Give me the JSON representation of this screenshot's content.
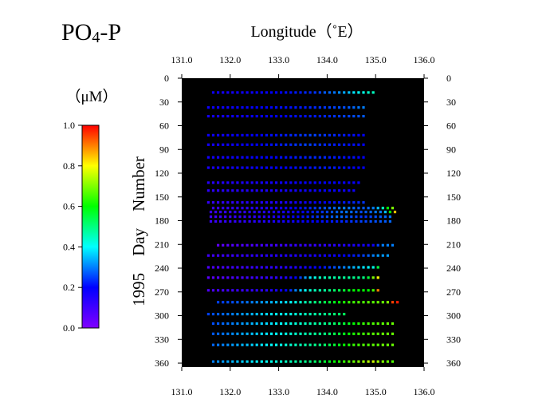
{
  "title_main": "PO",
  "title_sub": "4",
  "title_tail": "-P",
  "x_axis_title": "Longitude（˚E）",
  "y_axis_title": "1995　Day　Number",
  "colorbar": {
    "unit_label": "（μM）",
    "ticks": [
      "1.0",
      "0.8",
      "0.6",
      "0.4",
      "0.2",
      "0.0"
    ],
    "min": 0,
    "max": 1
  },
  "chart_data": {
    "type": "heatmap",
    "xlabel": "Longitude（˚E）",
    "ylabel": "1995　Day　Number",
    "xlim": [
      131,
      136
    ],
    "ylim": [
      0,
      365
    ],
    "xticks": [
      "131.0",
      "132.0",
      "133.0",
      "134.0",
      "135.0",
      "136.0"
    ],
    "yticks": [
      "0",
      "30",
      "60",
      "90",
      "120",
      "150",
      "180",
      "210",
      "240",
      "270",
      "300",
      "330",
      "360"
    ],
    "value_unit": "μM",
    "value_range": [
      0,
      1
    ],
    "rows": [
      {
        "day": 18,
        "lon_start": 131.65,
        "lon_end": 135.0,
        "step": 0.1,
        "values": [
          0.18,
          0.18,
          0.17,
          0.17,
          0.17,
          0.18,
          0.18,
          0.18,
          0.18,
          0.19,
          0.19,
          0.19,
          0.2,
          0.2,
          0.2,
          0.21,
          0.21,
          0.22,
          0.22,
          0.23,
          0.23,
          0.24,
          0.25,
          0.27,
          0.28,
          0.29,
          0.31,
          0.33,
          0.35,
          0.38,
          0.4,
          0.42,
          0.44,
          0.45
        ]
      },
      {
        "day": 37,
        "lon_start": 131.55,
        "lon_end": 134.75,
        "step": 0.1,
        "values": [
          0.18,
          0.18,
          0.18,
          0.18,
          0.18,
          0.18,
          0.19,
          0.19,
          0.19,
          0.19,
          0.2,
          0.2,
          0.2,
          0.2,
          0.21,
          0.21,
          0.21,
          0.21,
          0.22,
          0.22,
          0.22,
          0.23,
          0.23,
          0.24,
          0.24,
          0.25,
          0.25,
          0.26,
          0.26,
          0.27,
          0.28,
          0.29,
          0.3
        ]
      },
      {
        "day": 48,
        "lon_start": 131.55,
        "lon_end": 134.75,
        "step": 0.1,
        "values": [
          0.17,
          0.17,
          0.17,
          0.17,
          0.18,
          0.18,
          0.18,
          0.18,
          0.18,
          0.19,
          0.19,
          0.19,
          0.19,
          0.2,
          0.2,
          0.2,
          0.2,
          0.21,
          0.21,
          0.21,
          0.21,
          0.22,
          0.22,
          0.22,
          0.23,
          0.23,
          0.24,
          0.24,
          0.25,
          0.25,
          0.26,
          0.26,
          0.27
        ]
      },
      {
        "day": 72,
        "lon_start": 131.55,
        "lon_end": 134.75,
        "step": 0.1,
        "values": [
          0.18,
          0.18,
          0.18,
          0.18,
          0.18,
          0.19,
          0.19,
          0.19,
          0.19,
          0.2,
          0.2,
          0.2,
          0.21,
          0.21,
          0.21,
          0.22,
          0.22,
          0.23,
          0.23,
          0.24,
          0.24,
          0.25,
          0.25,
          0.24,
          0.24,
          0.23,
          0.23,
          0.22,
          0.22,
          0.21,
          0.21,
          0.2,
          0.2
        ]
      },
      {
        "day": 84,
        "lon_start": 131.55,
        "lon_end": 134.75,
        "step": 0.1,
        "values": [
          0.17,
          0.17,
          0.17,
          0.18,
          0.18,
          0.18,
          0.19,
          0.19,
          0.19,
          0.2,
          0.2,
          0.2,
          0.21,
          0.21,
          0.22,
          0.22,
          0.23,
          0.23,
          0.24,
          0.24,
          0.25,
          0.25,
          0.24,
          0.24,
          0.23,
          0.23,
          0.22,
          0.22,
          0.22,
          0.21,
          0.21,
          0.21,
          0.2
        ]
      },
      {
        "day": 100,
        "lon_start": 131.55,
        "lon_end": 134.75,
        "step": 0.1,
        "values": [
          0.17,
          0.17,
          0.17,
          0.17,
          0.18,
          0.18,
          0.18,
          0.18,
          0.19,
          0.19,
          0.19,
          0.2,
          0.2,
          0.2,
          0.2,
          0.21,
          0.21,
          0.21,
          0.22,
          0.22,
          0.22,
          0.23,
          0.23,
          0.23,
          0.23,
          0.22,
          0.22,
          0.22,
          0.21,
          0.21,
          0.21,
          0.2,
          0.2
        ]
      },
      {
        "day": 113,
        "lon_start": 131.55,
        "lon_end": 134.75,
        "step": 0.1,
        "values": [
          0.16,
          0.16,
          0.17,
          0.17,
          0.17,
          0.17,
          0.18,
          0.18,
          0.18,
          0.18,
          0.19,
          0.19,
          0.19,
          0.19,
          0.2,
          0.2,
          0.2,
          0.2,
          0.21,
          0.21,
          0.21,
          0.21,
          0.22,
          0.22,
          0.22,
          0.22,
          0.22,
          0.21,
          0.21,
          0.21,
          0.2,
          0.2,
          0.2
        ]
      },
      {
        "day": 132,
        "lon_start": 131.55,
        "lon_end": 134.65,
        "step": 0.1,
        "values": [
          0.14,
          0.14,
          0.14,
          0.15,
          0.15,
          0.15,
          0.15,
          0.16,
          0.16,
          0.16,
          0.16,
          0.17,
          0.17,
          0.17,
          0.17,
          0.18,
          0.18,
          0.18,
          0.18,
          0.19,
          0.19,
          0.19,
          0.19,
          0.2,
          0.2,
          0.2,
          0.2,
          0.2,
          0.19,
          0.19,
          0.19,
          0.19
        ]
      },
      {
        "day": 142,
        "lon_start": 131.55,
        "lon_end": 134.55,
        "step": 0.1,
        "values": [
          0.13,
          0.13,
          0.13,
          0.14,
          0.14,
          0.14,
          0.14,
          0.15,
          0.15,
          0.15,
          0.15,
          0.16,
          0.16,
          0.16,
          0.16,
          0.17,
          0.17,
          0.17,
          0.17,
          0.18,
          0.18,
          0.18,
          0.18,
          0.19,
          0.19,
          0.19,
          0.19,
          0.18,
          0.18,
          0.18,
          0.18
        ]
      },
      {
        "day": 157,
        "lon_start": 131.55,
        "lon_end": 134.75,
        "step": 0.1,
        "values": [
          0.12,
          0.12,
          0.12,
          0.13,
          0.13,
          0.13,
          0.13,
          0.14,
          0.14,
          0.14,
          0.14,
          0.15,
          0.15,
          0.15,
          0.15,
          0.16,
          0.16,
          0.16,
          0.17,
          0.17,
          0.18,
          0.18,
          0.19,
          0.19,
          0.2,
          0.2,
          0.21,
          0.21,
          0.22,
          0.22,
          0.23,
          0.23,
          0.24
        ]
      },
      {
        "day": 164,
        "lon_start": 131.65,
        "lon_end": 135.35,
        "step": 0.1,
        "values": [
          0.11,
          0.11,
          0.12,
          0.12,
          0.12,
          0.13,
          0.13,
          0.13,
          0.14,
          0.14,
          0.15,
          0.15,
          0.16,
          0.16,
          0.17,
          0.18,
          0.19,
          0.2,
          0.21,
          0.22,
          0.23,
          0.24,
          0.25,
          0.26,
          0.27,
          0.28,
          0.29,
          0.3,
          0.29,
          0.28,
          0.27,
          0.27,
          0.28,
          0.3,
          0.35,
          0.45,
          0.6,
          0.7
        ]
      },
      {
        "day": 169,
        "lon_start": 131.6,
        "lon_end": 135.4,
        "step": 0.1,
        "values": [
          0.11,
          0.11,
          0.12,
          0.12,
          0.12,
          0.13,
          0.13,
          0.13,
          0.14,
          0.14,
          0.14,
          0.15,
          0.15,
          0.16,
          0.16,
          0.17,
          0.17,
          0.18,
          0.19,
          0.2,
          0.21,
          0.22,
          0.23,
          0.24,
          0.25,
          0.26,
          0.27,
          0.28,
          0.29,
          0.28,
          0.27,
          0.26,
          0.27,
          0.28,
          0.29,
          0.3,
          0.35,
          0.6,
          0.85
        ]
      },
      {
        "day": 175,
        "lon_start": 131.6,
        "lon_end": 135.3,
        "step": 0.1,
        "values": [
          0.1,
          0.1,
          0.11,
          0.11,
          0.11,
          0.12,
          0.12,
          0.12,
          0.13,
          0.13,
          0.14,
          0.14,
          0.15,
          0.15,
          0.16,
          0.17,
          0.18,
          0.19,
          0.2,
          0.21,
          0.22,
          0.23,
          0.24,
          0.25,
          0.26,
          0.27,
          0.28,
          0.28,
          0.27,
          0.26,
          0.25,
          0.24,
          0.24,
          0.25,
          0.26,
          0.27,
          0.28,
          0.29
        ]
      },
      {
        "day": 181,
        "lon_start": 131.6,
        "lon_end": 135.3,
        "step": 0.1,
        "values": [
          0.11,
          0.11,
          0.11,
          0.12,
          0.12,
          0.12,
          0.13,
          0.13,
          0.13,
          0.14,
          0.14,
          0.15,
          0.15,
          0.16,
          0.16,
          0.17,
          0.17,
          0.18,
          0.18,
          0.19,
          0.19,
          0.2,
          0.2,
          0.21,
          0.21,
          0.22,
          0.22,
          0.23,
          0.23,
          0.24,
          0.24,
          0.25,
          0.25,
          0.26,
          0.26,
          0.27,
          0.27,
          0.28
        ]
      },
      {
        "day": 211,
        "lon_start": 131.75,
        "lon_end": 135.35,
        "step": 0.1,
        "values": [
          0.05,
          0.06,
          0.06,
          0.07,
          0.07,
          0.08,
          0.08,
          0.08,
          0.09,
          0.09,
          0.1,
          0.1,
          0.1,
          0.11,
          0.11,
          0.12,
          0.12,
          0.12,
          0.12,
          0.12,
          0.12,
          0.13,
          0.13,
          0.13,
          0.14,
          0.14,
          0.15,
          0.15,
          0.16,
          0.16,
          0.17,
          0.17,
          0.18,
          0.25,
          0.3,
          0.3,
          0.3
        ]
      },
      {
        "day": 224,
        "lon_start": 131.55,
        "lon_end": 135.25,
        "step": 0.1,
        "values": [
          0.1,
          0.1,
          0.1,
          0.11,
          0.11,
          0.11,
          0.12,
          0.12,
          0.12,
          0.13,
          0.13,
          0.13,
          0.14,
          0.14,
          0.14,
          0.15,
          0.15,
          0.15,
          0.15,
          0.15,
          0.16,
          0.16,
          0.16,
          0.17,
          0.17,
          0.18,
          0.18,
          0.19,
          0.2,
          0.21,
          0.22,
          0.23,
          0.25,
          0.27,
          0.3,
          0.32,
          0.32,
          0.32
        ]
      },
      {
        "day": 239,
        "lon_start": 131.55,
        "lon_end": 135.05,
        "step": 0.1,
        "values": [
          0.08,
          0.08,
          0.08,
          0.09,
          0.09,
          0.1,
          0.1,
          0.1,
          0.11,
          0.11,
          0.12,
          0.12,
          0.13,
          0.13,
          0.13,
          0.14,
          0.14,
          0.15,
          0.15,
          0.16,
          0.17,
          0.18,
          0.19,
          0.2,
          0.22,
          0.24,
          0.26,
          0.28,
          0.3,
          0.32,
          0.34,
          0.36,
          0.38,
          0.4,
          0.42,
          0.55
        ]
      },
      {
        "day": 252,
        "lon_start": 131.55,
        "lon_end": 135.05,
        "step": 0.1,
        "values": [
          0.06,
          0.06,
          0.07,
          0.07,
          0.08,
          0.08,
          0.09,
          0.09,
          0.1,
          0.1,
          0.11,
          0.11,
          0.12,
          0.12,
          0.13,
          0.14,
          0.15,
          0.17,
          0.2,
          0.25,
          0.32,
          0.38,
          0.42,
          0.45,
          0.46,
          0.47,
          0.47,
          0.48,
          0.48,
          0.48,
          0.49,
          0.49,
          0.5,
          0.55,
          0.7,
          0.8
        ]
      },
      {
        "day": 268,
        "lon_start": 131.55,
        "lon_end": 135.05,
        "step": 0.1,
        "values": [
          0.08,
          0.08,
          0.09,
          0.09,
          0.1,
          0.1,
          0.11,
          0.11,
          0.12,
          0.12,
          0.13,
          0.13,
          0.14,
          0.15,
          0.16,
          0.18,
          0.2,
          0.24,
          0.3,
          0.36,
          0.4,
          0.44,
          0.46,
          0.47,
          0.48,
          0.5,
          0.52,
          0.54,
          0.56,
          0.58,
          0.6,
          0.6,
          0.6,
          0.6,
          0.65,
          0.9
        ]
      },
      {
        "day": 283,
        "lon_start": 131.75,
        "lon_end": 135.45,
        "step": 0.1,
        "values": [
          0.25,
          0.25,
          0.26,
          0.26,
          0.27,
          0.28,
          0.29,
          0.3,
          0.31,
          0.32,
          0.33,
          0.34,
          0.35,
          0.36,
          0.38,
          0.4,
          0.42,
          0.44,
          0.46,
          0.48,
          0.5,
          0.52,
          0.54,
          0.56,
          0.58,
          0.6,
          0.62,
          0.64,
          0.65,
          0.66,
          0.66,
          0.67,
          0.67,
          0.68,
          0.68,
          0.7,
          0.95,
          0.98
        ]
      },
      {
        "day": 298,
        "lon_start": 131.55,
        "lon_end": 134.35,
        "step": 0.1,
        "values": [
          0.25,
          0.26,
          0.27,
          0.28,
          0.29,
          0.3,
          0.31,
          0.32,
          0.33,
          0.34,
          0.35,
          0.36,
          0.37,
          0.38,
          0.39,
          0.4,
          0.41,
          0.42,
          0.43,
          0.44,
          0.45,
          0.46,
          0.47,
          0.48,
          0.49,
          0.5,
          0.51,
          0.52,
          0.53
        ]
      },
      {
        "day": 310,
        "lon_start": 131.65,
        "lon_end": 135.35,
        "step": 0.1,
        "values": [
          0.26,
          0.27,
          0.28,
          0.29,
          0.3,
          0.31,
          0.32,
          0.33,
          0.34,
          0.35,
          0.36,
          0.37,
          0.38,
          0.39,
          0.4,
          0.41,
          0.42,
          0.43,
          0.44,
          0.45,
          0.46,
          0.47,
          0.48,
          0.49,
          0.5,
          0.52,
          0.54,
          0.56,
          0.58,
          0.6,
          0.62,
          0.64,
          0.65,
          0.66,
          0.67,
          0.67,
          0.68,
          0.68
        ]
      },
      {
        "day": 323,
        "lon_start": 131.65,
        "lon_end": 135.35,
        "step": 0.1,
        "values": [
          0.27,
          0.28,
          0.29,
          0.3,
          0.31,
          0.32,
          0.33,
          0.34,
          0.35,
          0.36,
          0.37,
          0.38,
          0.39,
          0.4,
          0.41,
          0.42,
          0.43,
          0.44,
          0.45,
          0.46,
          0.47,
          0.48,
          0.49,
          0.5,
          0.52,
          0.54,
          0.56,
          0.58,
          0.6,
          0.62,
          0.64,
          0.65,
          0.66,
          0.67,
          0.67,
          0.68,
          0.68,
          0.68
        ]
      },
      {
        "day": 337,
        "lon_start": 131.65,
        "lon_end": 135.35,
        "step": 0.1,
        "values": [
          0.28,
          0.29,
          0.3,
          0.31,
          0.32,
          0.33,
          0.34,
          0.35,
          0.36,
          0.37,
          0.38,
          0.39,
          0.4,
          0.41,
          0.42,
          0.43,
          0.44,
          0.45,
          0.46,
          0.47,
          0.48,
          0.49,
          0.5,
          0.52,
          0.54,
          0.56,
          0.58,
          0.6,
          0.62,
          0.64,
          0.65,
          0.66,
          0.66,
          0.67,
          0.67,
          0.68,
          0.68,
          0.68
        ]
      },
      {
        "day": 358,
        "lon_start": 131.65,
        "lon_end": 135.35,
        "step": 0.1,
        "values": [
          0.3,
          0.31,
          0.32,
          0.33,
          0.34,
          0.35,
          0.36,
          0.37,
          0.38,
          0.39,
          0.4,
          0.41,
          0.42,
          0.43,
          0.44,
          0.45,
          0.46,
          0.47,
          0.48,
          0.49,
          0.5,
          0.52,
          0.54,
          0.56,
          0.58,
          0.6,
          0.62,
          0.64,
          0.66,
          0.68,
          0.7,
          0.72,
          0.74,
          0.76,
          0.72,
          0.7,
          0.68,
          0.66
        ]
      }
    ]
  }
}
